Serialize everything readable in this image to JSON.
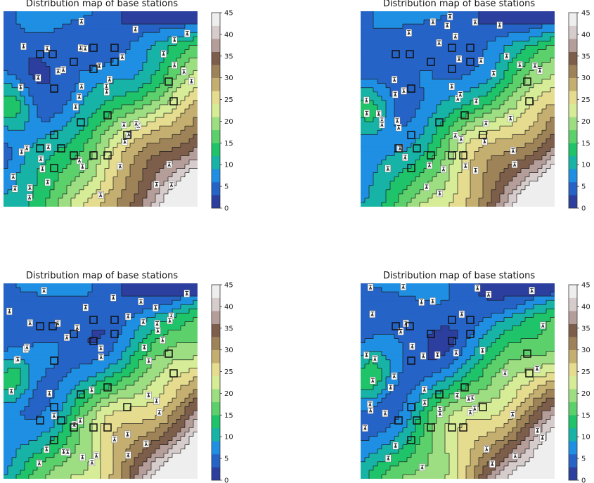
{
  "chart_data": [
    {
      "type": "contour",
      "title": "Distribution map of base stations",
      "colorbar": {
        "ticks": [
          "0",
          "5",
          "10",
          "15",
          "20",
          "25",
          "30",
          "35",
          "40",
          "45"
        ],
        "range": [
          0,
          45
        ],
        "levels": 9
      },
      "station_variant": 0
    },
    {
      "type": "contour",
      "title": "Distribution map of base stations",
      "colorbar": {
        "ticks": [
          "0",
          "5",
          "10",
          "15",
          "20",
          "25",
          "30",
          "35",
          "40",
          "45"
        ],
        "range": [
          0,
          45
        ],
        "levels": 9
      },
      "station_variant": 1
    },
    {
      "type": "contour",
      "title": "Distribution map of base stations",
      "colorbar": {
        "ticks": [
          "0",
          "5",
          "10",
          "15",
          "20",
          "25",
          "30",
          "35",
          "40",
          "45"
        ],
        "range": [
          0,
          45
        ],
        "levels": 9
      },
      "station_variant": 2
    },
    {
      "type": "contour",
      "title": "Distribution map of base stations",
      "colorbar": {
        "ticks": [
          "0",
          "5",
          "10",
          "15",
          "20",
          "25",
          "30",
          "35",
          "40",
          "45"
        ],
        "range": [
          0,
          45
        ],
        "levels": 9
      },
      "station_variant": 3
    }
  ],
  "colors": {
    "levels": [
      "#2c3e9e",
      "#2563c7",
      "#1f8fe3",
      "#17b3a6",
      "#1fc46a",
      "#5cd16b",
      "#9ede82",
      "#d6ec96",
      "#e6dc8f",
      "#c4ae70",
      "#9e8358",
      "#7c5e4b",
      "#b59e9a",
      "#d6cccc",
      "#eeeeee"
    ],
    "contour_line": "#1a1a1a",
    "box": "#111111"
  }
}
